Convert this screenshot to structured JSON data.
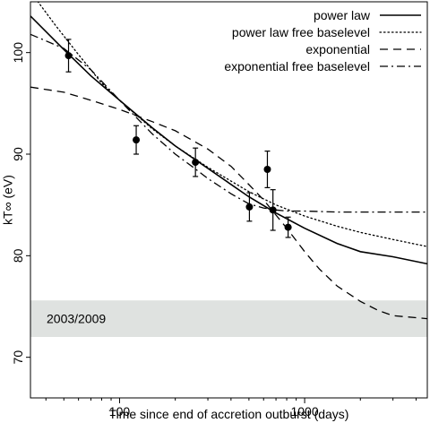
{
  "chart_data": {
    "type": "line",
    "xlabel": "Time since end of accretion outburst (days)",
    "ylabel": "kT∞ (eV)",
    "xscale": "log",
    "xlim": [
      33,
      4600
    ],
    "ylim": [
      66,
      105
    ],
    "x_ticks": [
      100,
      1000
    ],
    "x_tick_labels": [
      "100",
      "1000"
    ],
    "y_ticks": [
      70,
      80,
      90,
      100
    ],
    "y_tick_labels": [
      "70",
      "80",
      "90",
      "100"
    ],
    "grid": false,
    "legend_position": "top-right",
    "band": {
      "label": "2003/2009",
      "y_range": [
        72,
        75.6
      ],
      "color": "#dfe2e0"
    },
    "points": [
      {
        "x": 53,
        "y": 99.7,
        "yerr": 1.6
      },
      {
        "x": 123,
        "y": 91.4,
        "yerr": 1.4
      },
      {
        "x": 257,
        "y": 89.2,
        "yerr": 1.4
      },
      {
        "x": 503,
        "y": 84.8,
        "yerr": 1.4
      },
      {
        "x": 629,
        "y": 88.5,
        "yerr": 1.8
      },
      {
        "x": 674,
        "y": 84.5,
        "yerr": 2.0
      },
      {
        "x": 814,
        "y": 82.8,
        "yerr": 1.0
      }
    ],
    "series": [
      {
        "name": "power law",
        "style": "solid",
        "x": [
          33,
          50,
          70,
          100,
          150,
          200,
          300,
          500,
          700,
          1000,
          1500,
          2000,
          3000,
          4600
        ],
        "y": [
          103.6,
          100.3,
          97.7,
          95.3,
          92.6,
          90.8,
          88.6,
          85.8,
          84.2,
          82.7,
          81.2,
          80.4,
          79.9,
          79.2
        ]
      },
      {
        "name": "power law free baselevel",
        "style": "dotted",
        "x": [
          33,
          45,
          60,
          80,
          100,
          150,
          200,
          300,
          500,
          700,
          1000,
          1500,
          2000,
          3000,
          4600
        ],
        "y": [
          106,
          102.7,
          99.8,
          97.0,
          95.3,
          92.5,
          90.8,
          88.7,
          86.3,
          85.0,
          83.9,
          82.9,
          82.3,
          81.6,
          80.9
        ]
      },
      {
        "name": "exponential",
        "style": "dashed",
        "x": [
          33,
          50,
          70,
          100,
          150,
          200,
          300,
          400,
          500,
          600,
          700,
          800,
          1000,
          1200,
          1500,
          2000,
          2500,
          3000,
          4600
        ],
        "y": [
          96.6,
          96.1,
          95.3,
          94.4,
          93.2,
          92.3,
          90.5,
          88.8,
          87.0,
          85.5,
          84.0,
          82.7,
          80.4,
          78.7,
          77.0,
          75.5,
          74.6,
          74.1,
          73.8
        ]
      },
      {
        "name": "exponential free baselevel",
        "style": "dashdot",
        "x": [
          33,
          50,
          70,
          100,
          150,
          200,
          250,
          300,
          400,
          500,
          600,
          700,
          800,
          1000,
          1500,
          2000,
          4600
        ],
        "y": [
          101.8,
          100.4,
          98.3,
          95.3,
          92.0,
          90.0,
          88.7,
          87.6,
          86.1,
          85.1,
          84.7,
          84.5,
          84.4,
          84.4,
          84.3,
          84.3,
          84.3
        ]
      }
    ]
  }
}
